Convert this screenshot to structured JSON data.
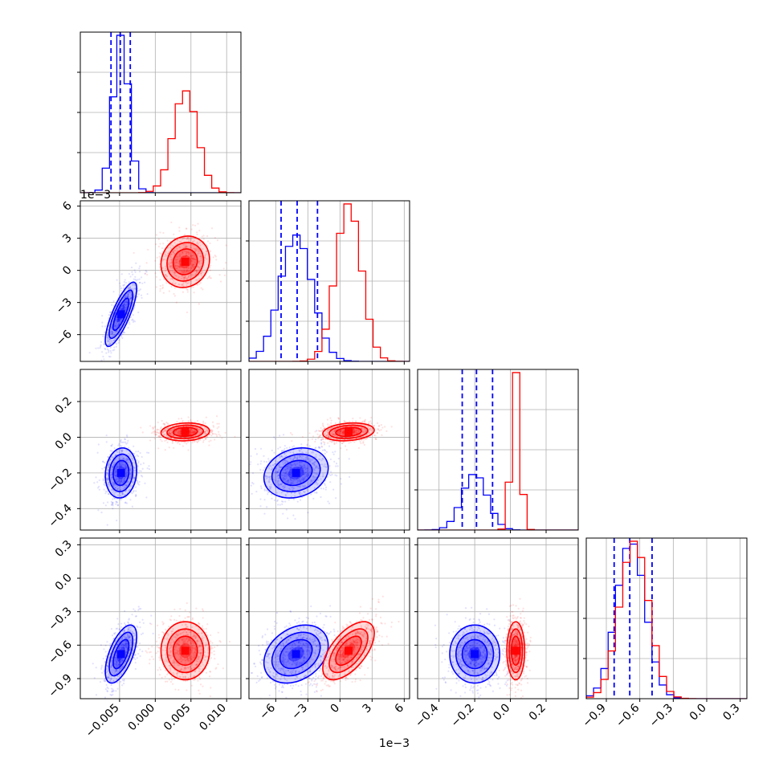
{
  "chart_data": {
    "type": "corner",
    "grid": true,
    "colors": {
      "blue": "#0000ff",
      "red": "#ff0000",
      "grid": "#b0b0b0",
      "axes": "#000000"
    },
    "series_colors": [
      "#0000ff",
      "#ff0000"
    ],
    "parameters": [
      {
        "range": [
          -0.0105,
          0.012
        ],
        "ticks": [
          -0.005,
          0.0,
          0.005,
          0.01
        ],
        "tick_labels": [
          "−0.005",
          "0.000",
          "0.005",
          "0.010"
        ],
        "offset_label": ""
      },
      {
        "range": [
          -0.0085,
          0.0065
        ],
        "ticks": [
          -0.006,
          -0.003,
          0.0,
          0.003,
          0.006
        ],
        "tick_labels": [
          "−6",
          "−3",
          "0",
          "3",
          "6"
        ],
        "offset_label": "1e−3"
      },
      {
        "range": [
          -0.52,
          0.38
        ],
        "ticks": [
          -0.4,
          -0.2,
          0.0,
          0.2
        ],
        "tick_labels": [
          "−0.4",
          "−0.2",
          "0.0",
          "0.2"
        ],
        "offset_label": ""
      },
      {
        "range": [
          -1.08,
          0.36
        ],
        "ticks": [
          -0.9,
          -0.6,
          -0.3,
          0.0,
          0.3
        ],
        "tick_labels": [
          "−0.9",
          "−0.6",
          "−0.3",
          "0.0",
          "0.3"
        ],
        "offset_label": ""
      }
    ],
    "series": [
      {
        "color": "#0000ff",
        "means": [
          -0.0048,
          -0.0041,
          -0.2,
          -0.68
        ],
        "stds": [
          0.0011,
          0.0015,
          0.07,
          0.13
        ],
        "quantiles": [
          [
            -0.0062,
            -0.0049,
            -0.0035
          ],
          [
            -0.0055,
            -0.004,
            -0.0021
          ],
          [
            -0.27,
            -0.19,
            -0.1
          ],
          [
            -0.83,
            -0.69,
            -0.49
          ]
        ]
      },
      {
        "color": "#ff0000",
        "means": [
          0.0042,
          0.0008,
          0.03,
          -0.65
        ],
        "stds": [
          0.0017,
          0.0012,
          0.025,
          0.13
        ],
        "quantiles": [
          [],
          [],
          [],
          []
        ]
      }
    ],
    "correlations": {
      "0_1": [
        0.8,
        0.1
      ],
      "0_2": [
        0.1,
        0.1
      ],
      "1_2": [
        0.2,
        0.2
      ],
      "0_3": [
        0.6,
        0.0
      ],
      "1_3": [
        0.3,
        0.6
      ],
      "2_3": [
        0.0,
        0.0
      ]
    }
  }
}
